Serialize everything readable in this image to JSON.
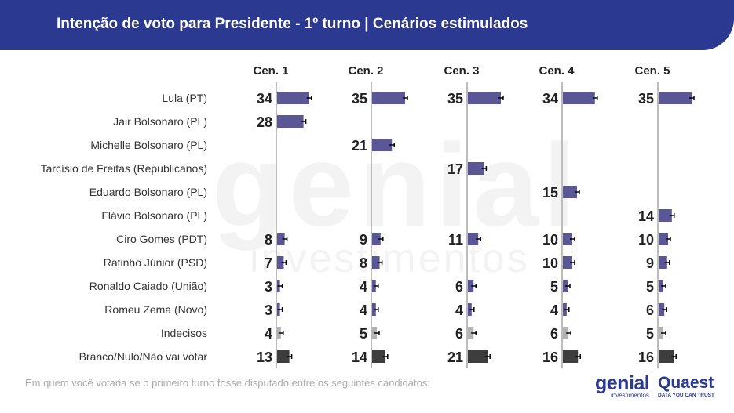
{
  "header": {
    "title": "Intenção de voto para Presidente - 1º turno | Cenários estimulados"
  },
  "footnote": "Em quem você votaria se o primeiro turno fosse disputado entre os seguintes candidatos:",
  "logos": {
    "genial": "genial",
    "genial_sub": "investimentos",
    "quaest": "Quaest",
    "quaest_sub": "DATA YOU CAN TRUST"
  },
  "colors": {
    "header": "#2b3990",
    "candidate_bar": "#5b5797",
    "undecided_bar": "#b3b3b3",
    "blank_bar": "#3d3d3d",
    "axis": "#bcbcbc"
  },
  "chart_data": {
    "type": "bar",
    "orientation": "horizontal",
    "panels": [
      "Cen. 1",
      "Cen. 2",
      "Cen. 3",
      "Cen. 4",
      "Cen. 5"
    ],
    "categories": [
      "Lula (PT)",
      "Jair Bolsonaro (PL)",
      "Michelle Bolsonaro (PL)",
      "Tarcísio de Freitas (Republicanos)",
      "Eduardo Bolsonaro (PL)",
      "Flávio Bolsonaro (PL)",
      "Ciro Gomes (PDT)",
      "Ratinho Júnior (PSD)",
      "Ronaldo Caiado (União)",
      "Romeu Zema (Novo)",
      "Indecisos",
      "Branco/Nulo/Não vai votar"
    ],
    "series": [
      {
        "name": "Cen. 1",
        "values": [
          34,
          28,
          null,
          null,
          null,
          null,
          8,
          7,
          3,
          3,
          4,
          13
        ]
      },
      {
        "name": "Cen. 2",
        "values": [
          35,
          null,
          21,
          null,
          null,
          null,
          9,
          8,
          4,
          4,
          5,
          14
        ]
      },
      {
        "name": "Cen. 3",
        "values": [
          35,
          null,
          null,
          17,
          null,
          null,
          11,
          null,
          6,
          4,
          6,
          21
        ]
      },
      {
        "name": "Cen. 4",
        "values": [
          34,
          null,
          null,
          null,
          15,
          null,
          10,
          10,
          5,
          4,
          6,
          16
        ]
      },
      {
        "name": "Cen. 5",
        "values": [
          35,
          null,
          null,
          null,
          null,
          14,
          10,
          9,
          5,
          6,
          5,
          16
        ]
      }
    ],
    "error_bars": true,
    "xlim": [
      0,
      40
    ]
  }
}
